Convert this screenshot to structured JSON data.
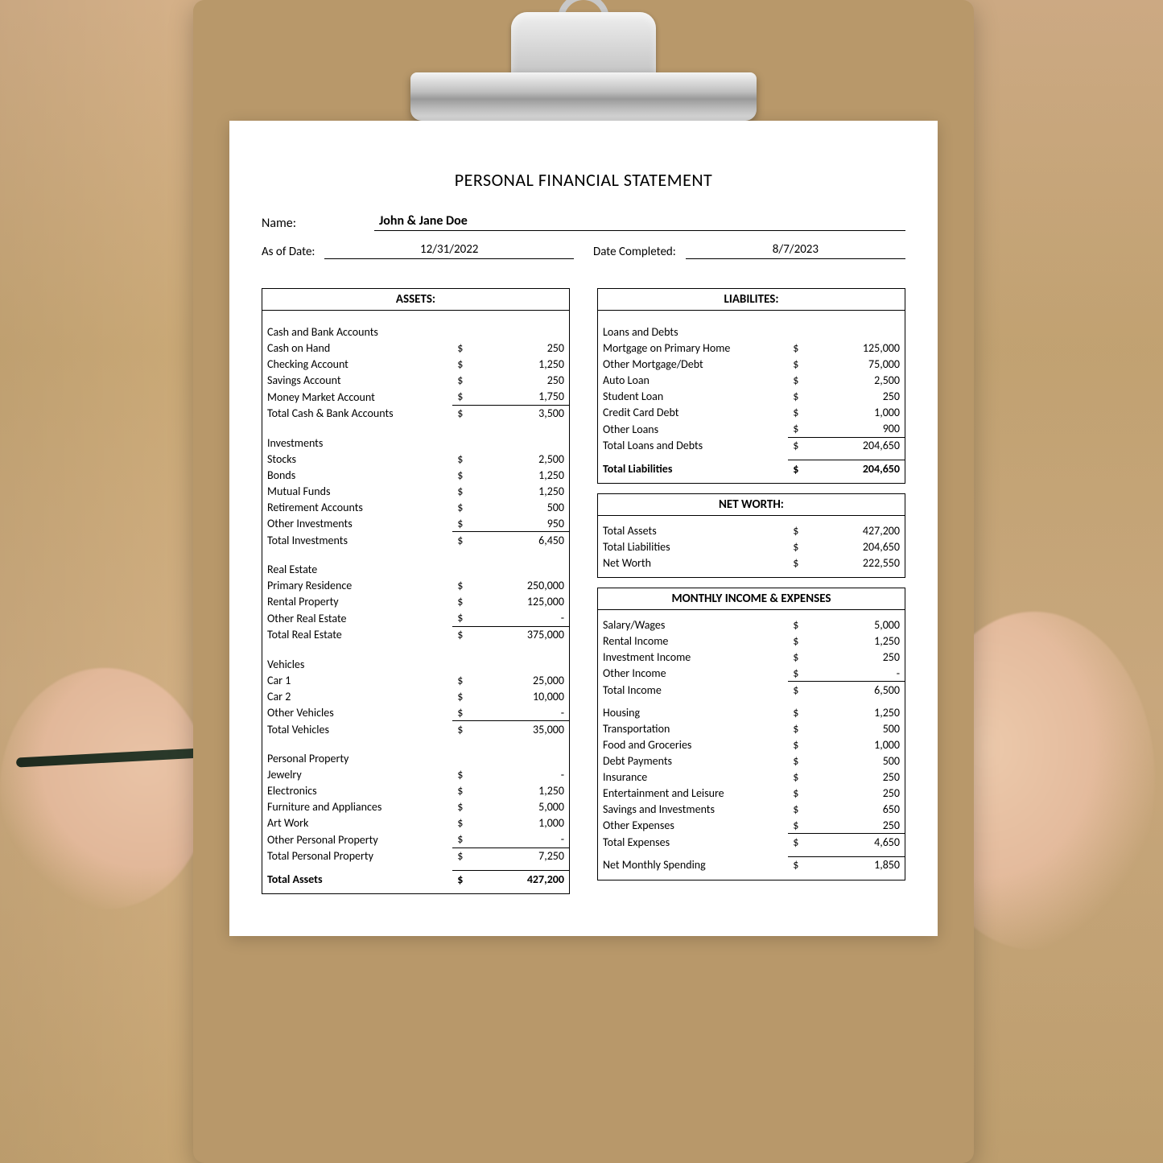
{
  "title": "PERSONAL FINANCIAL STATEMENT",
  "header": {
    "name_label": "Name:",
    "name_value": "John & Jane Doe",
    "asof_label": "As of Date:",
    "asof_value": "12/31/2022",
    "completed_label": "Date Completed:",
    "completed_value": "8/7/2023"
  },
  "colors": {
    "paper_bg": "#ffffff",
    "border": "#000000",
    "text": "#000000",
    "wood": "#c9a876",
    "clipboard": "#b8986a"
  },
  "assets": {
    "title": "ASSETS:",
    "sections": [
      {
        "heading": "Cash and Bank Accounts",
        "rows": [
          {
            "label": "Cash on Hand",
            "amount": "250"
          },
          {
            "label": "Checking Account",
            "amount": "1,250"
          },
          {
            "label": "Savings Account",
            "amount": "250"
          },
          {
            "label": "Money Market Account",
            "amount": "1,750"
          }
        ],
        "subtotal": {
          "label": "Total Cash & Bank Accounts",
          "amount": "3,500"
        }
      },
      {
        "heading": "Investments",
        "rows": [
          {
            "label": "Stocks",
            "amount": "2,500"
          },
          {
            "label": "Bonds",
            "amount": "1,250"
          },
          {
            "label": "Mutual Funds",
            "amount": "1,250"
          },
          {
            "label": "Retirement Accounts",
            "amount": "500"
          },
          {
            "label": "Other Investments",
            "amount": "950"
          }
        ],
        "subtotal": {
          "label": "Total Investments",
          "amount": "6,450"
        }
      },
      {
        "heading": "Real Estate",
        "rows": [
          {
            "label": "Primary Residence",
            "amount": "250,000"
          },
          {
            "label": "Rental Property",
            "amount": "125,000"
          },
          {
            "label": "Other Real Estate",
            "amount": "-"
          }
        ],
        "subtotal": {
          "label": "Total Real Estate",
          "amount": "375,000"
        }
      },
      {
        "heading": "Vehicles",
        "rows": [
          {
            "label": "Car 1",
            "amount": "25,000"
          },
          {
            "label": "Car 2",
            "amount": "10,000"
          },
          {
            "label": "Other Vehicles",
            "amount": "-"
          }
        ],
        "subtotal": {
          "label": "Total Vehicles",
          "amount": "35,000"
        }
      },
      {
        "heading": "Personal Property",
        "rows": [
          {
            "label": "Jewelry",
            "amount": "-"
          },
          {
            "label": "Electronics",
            "amount": "1,250"
          },
          {
            "label": "Furniture and Appliances",
            "amount": "5,000"
          },
          {
            "label": "Art Work",
            "amount": "1,000"
          },
          {
            "label": "Other Personal Property",
            "amount": "-"
          }
        ],
        "subtotal": {
          "label": "Total Personal Property",
          "amount": "7,250"
        }
      }
    ],
    "grand_total": {
      "label": "Total Assets",
      "amount": "427,200"
    }
  },
  "liabilities": {
    "title": "LIABILITES:",
    "sections": [
      {
        "heading": "Loans and Debts",
        "rows": [
          {
            "label": "Mortgage on Primary Home",
            "amount": "125,000"
          },
          {
            "label": "Other Mortgage/Debt",
            "amount": "75,000"
          },
          {
            "label": "Auto Loan",
            "amount": "2,500"
          },
          {
            "label": "Student Loan",
            "amount": "250"
          },
          {
            "label": "Credit Card Debt",
            "amount": "1,000"
          },
          {
            "label": "Other Loans",
            "amount": "900"
          }
        ],
        "subtotal": {
          "label": "Total Loans and Debts",
          "amount": "204,650"
        }
      }
    ],
    "grand_total": {
      "label": "Total Liabilities",
      "amount": "204,650"
    }
  },
  "networth": {
    "title": "NET WORTH:",
    "rows": [
      {
        "label": "Total Assets",
        "amount": "427,200"
      },
      {
        "label": "Total Liabilities",
        "amount": "204,650"
      },
      {
        "label": "Net Worth",
        "amount": "222,550"
      }
    ]
  },
  "income_expenses": {
    "title": "MONTHLY INCOME & EXPENSES",
    "income_rows": [
      {
        "label": "Salary/Wages",
        "amount": "5,000"
      },
      {
        "label": "Rental Income",
        "amount": "1,250"
      },
      {
        "label": "Investment Income",
        "amount": "250"
      },
      {
        "label": "Other Income",
        "amount": "-"
      }
    ],
    "income_total": {
      "label": "Total Income",
      "amount": "6,500"
    },
    "expense_rows": [
      {
        "label": "Housing",
        "amount": "1,250"
      },
      {
        "label": "Transportation",
        "amount": "500"
      },
      {
        "label": "Food and Groceries",
        "amount": "1,000"
      },
      {
        "label": "Debt Payments",
        "amount": "500"
      },
      {
        "label": "Insurance",
        "amount": "250"
      },
      {
        "label": "Entertainment and Leisure",
        "amount": "250"
      },
      {
        "label": "Savings and Investments",
        "amount": "650"
      },
      {
        "label": "Other Expenses",
        "amount": "250"
      }
    ],
    "expense_total": {
      "label": "Total Expenses",
      "amount": "4,650"
    },
    "net": {
      "label": "Net Monthly Spending",
      "amount": "1,850"
    }
  }
}
